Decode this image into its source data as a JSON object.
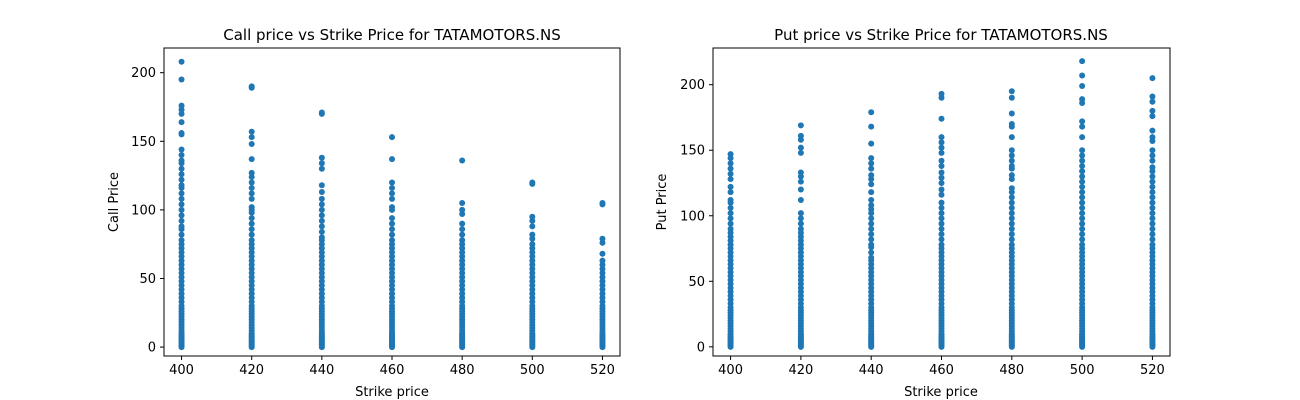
{
  "chart_data": [
    {
      "type": "scatter",
      "title": "Call price vs Strike Price for TATAMOTORS.NS",
      "xlabel": "Strike price",
      "ylabel": "Call Price",
      "xlim": [
        395,
        525
      ],
      "ylim": [
        -6.5,
        218
      ],
      "xticks": [
        400,
        420,
        440,
        460,
        480,
        500,
        520
      ],
      "yticks": [
        0,
        50,
        100,
        150,
        200
      ],
      "marker_color": "#1f77b4",
      "grid": false,
      "series": [
        {
          "values": [
            {
              "x": 400,
              "y": [
                0,
                1,
                2,
                3,
                4,
                5,
                6,
                7,
                8,
                9,
                10,
                12,
                14,
                16,
                18,
                20,
                22,
                24,
                26,
                28,
                30,
                33,
                36,
                39,
                42,
                45,
                48,
                51,
                54,
                57,
                60,
                63,
                66,
                69,
                72,
                75,
                78,
                82,
                86,
                88,
                92,
                96,
                100,
                104,
                108,
                112,
                116,
                118,
                122,
                126,
                130,
                134,
                136,
                140,
                144,
                155,
                156,
                164,
                170,
                173,
                176,
                195,
                208
              ]
            },
            {
              "x": 420,
              "y": [
                0,
                1,
                2,
                3,
                4,
                5,
                6,
                7,
                8,
                9,
                10,
                12,
                14,
                16,
                18,
                20,
                22,
                24,
                26,
                28,
                30,
                33,
                36,
                39,
                42,
                45,
                48,
                51,
                54,
                57,
                60,
                63,
                66,
                69,
                72,
                75,
                78,
                82,
                86,
                90,
                94,
                98,
                100,
                102,
                108,
                112,
                116,
                120,
                124,
                127,
                137,
                148,
                153,
                157,
                189,
                190
              ]
            },
            {
              "x": 440,
              "y": [
                0,
                1,
                2,
                3,
                4,
                5,
                6,
                7,
                8,
                9,
                10,
                12,
                14,
                16,
                18,
                20,
                22,
                24,
                26,
                28,
                30,
                33,
                36,
                39,
                42,
                45,
                48,
                51,
                54,
                57,
                60,
                63,
                66,
                69,
                72,
                75,
                78,
                80,
                84,
                88,
                92,
                96,
                100,
                104,
                108,
                113,
                118,
                130,
                134,
                138,
                170,
                171
              ]
            },
            {
              "x": 460,
              "y": [
                0,
                1,
                2,
                3,
                4,
                5,
                6,
                7,
                8,
                9,
                10,
                12,
                14,
                16,
                18,
                20,
                22,
                24,
                26,
                28,
                30,
                33,
                36,
                39,
                42,
                45,
                48,
                51,
                54,
                57,
                60,
                63,
                66,
                69,
                72,
                75,
                78,
                82,
                86,
                90,
                94,
                100,
                102,
                108,
                112,
                116,
                120,
                137,
                153
              ]
            },
            {
              "x": 480,
              "y": [
                0,
                1,
                2,
                3,
                4,
                5,
                6,
                7,
                8,
                9,
                10,
                12,
                14,
                16,
                18,
                20,
                22,
                24,
                26,
                28,
                30,
                33,
                36,
                39,
                42,
                45,
                48,
                51,
                54,
                57,
                60,
                63,
                66,
                69,
                72,
                75,
                78,
                82,
                86,
                90,
                97,
                100,
                105,
                136
              ]
            },
            {
              "x": 500,
              "y": [
                0,
                1,
                2,
                3,
                4,
                5,
                6,
                7,
                8,
                9,
                10,
                12,
                14,
                16,
                18,
                20,
                22,
                24,
                26,
                28,
                30,
                33,
                36,
                39,
                42,
                45,
                48,
                51,
                54,
                57,
                60,
                63,
                66,
                69,
                72,
                75,
                79,
                82,
                88,
                92,
                95,
                119,
                120
              ]
            },
            {
              "x": 520,
              "y": [
                0,
                1,
                2,
                3,
                4,
                5,
                6,
                7,
                8,
                9,
                10,
                12,
                14,
                16,
                18,
                20,
                22,
                24,
                26,
                28,
                30,
                33,
                36,
                39,
                42,
                45,
                48,
                51,
                54,
                57,
                60,
                63,
                68,
                76,
                79,
                104,
                105
              ]
            }
          ]
        }
      ]
    },
    {
      "type": "scatter",
      "title": "Put price vs Strike Price for TATAMOTORS.NS",
      "xlabel": "Strike price",
      "ylabel": "Put Price",
      "xlim": [
        395,
        525
      ],
      "ylim": [
        -7,
        228
      ],
      "xticks": [
        400,
        420,
        440,
        460,
        480,
        500,
        520
      ],
      "yticks": [
        0,
        50,
        100,
        150,
        200
      ],
      "marker_color": "#1f77b4",
      "grid": false,
      "series": [
        {
          "values": [
            {
              "x": 400,
              "y": [
                0,
                1,
                2,
                3,
                4,
                5,
                6,
                7,
                8,
                9,
                10,
                12,
                14,
                16,
                18,
                20,
                22,
                24,
                26,
                28,
                30,
                33,
                36,
                39,
                42,
                45,
                48,
                51,
                54,
                57,
                60,
                63,
                66,
                69,
                72,
                75,
                78,
                81,
                84,
                87,
                90,
                94,
                98,
                102,
                106,
                110,
                112,
                118,
                122,
                128,
                132,
                136,
                140,
                144,
                147
              ]
            },
            {
              "x": 420,
              "y": [
                0,
                1,
                2,
                3,
                4,
                5,
                6,
                7,
                8,
                9,
                10,
                12,
                14,
                16,
                18,
                20,
                22,
                24,
                26,
                28,
                30,
                33,
                36,
                39,
                42,
                45,
                48,
                51,
                54,
                57,
                60,
                63,
                66,
                69,
                72,
                75,
                78,
                81,
                84,
                87,
                90,
                94,
                98,
                102,
                112,
                120,
                126,
                130,
                133,
                148,
                152,
                158,
                161,
                169
              ]
            },
            {
              "x": 440,
              "y": [
                0,
                1,
                2,
                3,
                4,
                5,
                6,
                7,
                8,
                9,
                10,
                12,
                14,
                16,
                18,
                20,
                22,
                24,
                26,
                28,
                30,
                33,
                36,
                39,
                42,
                45,
                48,
                51,
                54,
                57,
                60,
                63,
                66,
                68,
                72,
                76,
                78,
                82,
                86,
                90,
                94,
                98,
                102,
                105,
                108,
                112,
                118,
                124,
                128,
                131,
                136,
                140,
                144,
                155,
                168,
                179
              ]
            },
            {
              "x": 460,
              "y": [
                0,
                1,
                2,
                3,
                4,
                5,
                6,
                7,
                8,
                9,
                10,
                12,
                14,
                16,
                18,
                20,
                22,
                24,
                26,
                28,
                30,
                33,
                36,
                39,
                42,
                45,
                48,
                51,
                54,
                57,
                60,
                63,
                66,
                69,
                72,
                75,
                78,
                82,
                86,
                90,
                94,
                98,
                102,
                106,
                110,
                116,
                120,
                125,
                129,
                133,
                138,
                142,
                148,
                152,
                156,
                160,
                174,
                190,
                193
              ]
            },
            {
              "x": 480,
              "y": [
                0,
                1,
                2,
                3,
                4,
                5,
                6,
                7,
                8,
                9,
                10,
                12,
                14,
                16,
                18,
                20,
                22,
                24,
                26,
                28,
                30,
                33,
                36,
                39,
                42,
                45,
                48,
                51,
                54,
                57,
                60,
                63,
                66,
                69,
                72,
                75,
                78,
                82,
                86,
                90,
                94,
                98,
                102,
                106,
                110,
                114,
                118,
                121,
                128,
                131,
                136,
                138,
                142,
                146,
                150,
                160,
                168,
                170,
                178,
                190,
                195
              ]
            },
            {
              "x": 500,
              "y": [
                0,
                1,
                2,
                3,
                4,
                5,
                6,
                7,
                8,
                9,
                10,
                12,
                14,
                16,
                18,
                20,
                22,
                24,
                26,
                28,
                30,
                33,
                36,
                39,
                42,
                45,
                48,
                51,
                54,
                57,
                60,
                63,
                66,
                69,
                72,
                75,
                78,
                82,
                86,
                90,
                94,
                98,
                102,
                106,
                110,
                114,
                118,
                122,
                126,
                130,
                134,
                138,
                142,
                146,
                150,
                160,
                168,
                172,
                186,
                189,
                199,
                207,
                218
              ]
            },
            {
              "x": 520,
              "y": [
                0,
                1,
                2,
                3,
                4,
                5,
                6,
                7,
                8,
                9,
                10,
                12,
                14,
                16,
                18,
                20,
                22,
                24,
                26,
                28,
                30,
                33,
                36,
                39,
                42,
                45,
                48,
                51,
                54,
                57,
                60,
                63,
                66,
                69,
                72,
                75,
                78,
                82,
                86,
                90,
                94,
                98,
                102,
                106,
                110,
                114,
                118,
                122,
                126,
                130,
                134,
                137,
                142,
                146,
                150,
                157,
                160,
                165,
                176,
                180,
                187,
                191,
                205
              ]
            }
          ]
        }
      ]
    }
  ]
}
